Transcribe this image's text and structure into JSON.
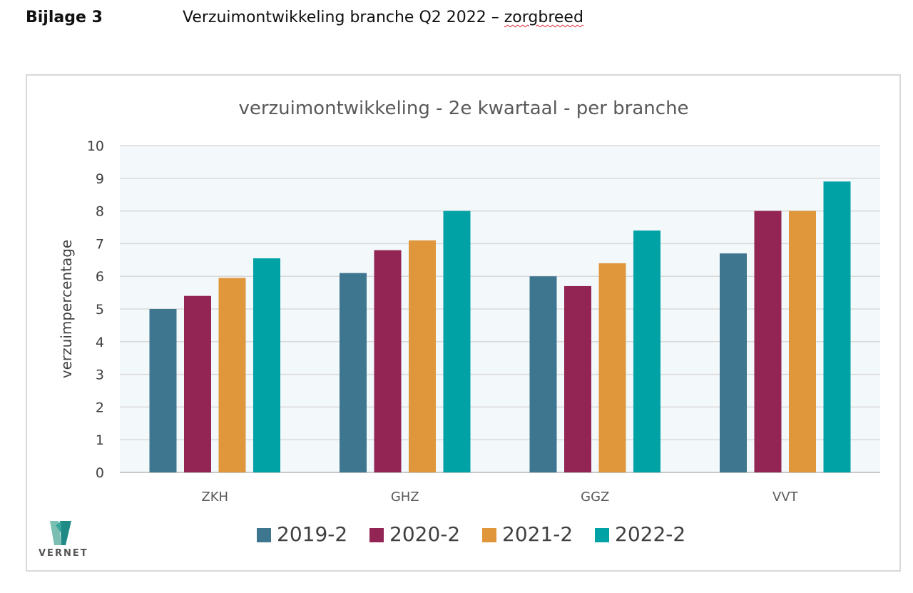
{
  "header": {
    "label": "Bijlage 3",
    "title_main": "Verzuimontwikkeling branche Q2 2022 – ",
    "title_flagged": "zorgbreed"
  },
  "logo": {
    "text": "VERNET"
  },
  "chart_data": {
    "type": "bar",
    "title": "verzuimontwikkeling - 2e kwartaal - per branche",
    "xlabel": "",
    "ylabel": "verzuimpercentage",
    "ylim": [
      0,
      10
    ],
    "yticks": [
      0,
      1,
      2,
      3,
      4,
      5,
      6,
      7,
      8,
      9,
      10
    ],
    "grid": true,
    "legend_position": "bottom",
    "categories": [
      "ZKH",
      "GHZ",
      "GGZ",
      "VVT"
    ],
    "series": [
      {
        "name": "2019-2",
        "color": "#3e7690",
        "values": [
          5.0,
          6.1,
          6.0,
          6.7
        ]
      },
      {
        "name": "2020-2",
        "color": "#922554",
        "values": [
          5.4,
          6.8,
          5.7,
          8.0
        ]
      },
      {
        "name": "2021-2",
        "color": "#e0963b",
        "values": [
          5.95,
          7.1,
          6.4,
          8.0
        ]
      },
      {
        "name": "2022-2",
        "color": "#00a2a6",
        "values": [
          6.55,
          8.0,
          7.4,
          8.9
        ]
      }
    ]
  }
}
